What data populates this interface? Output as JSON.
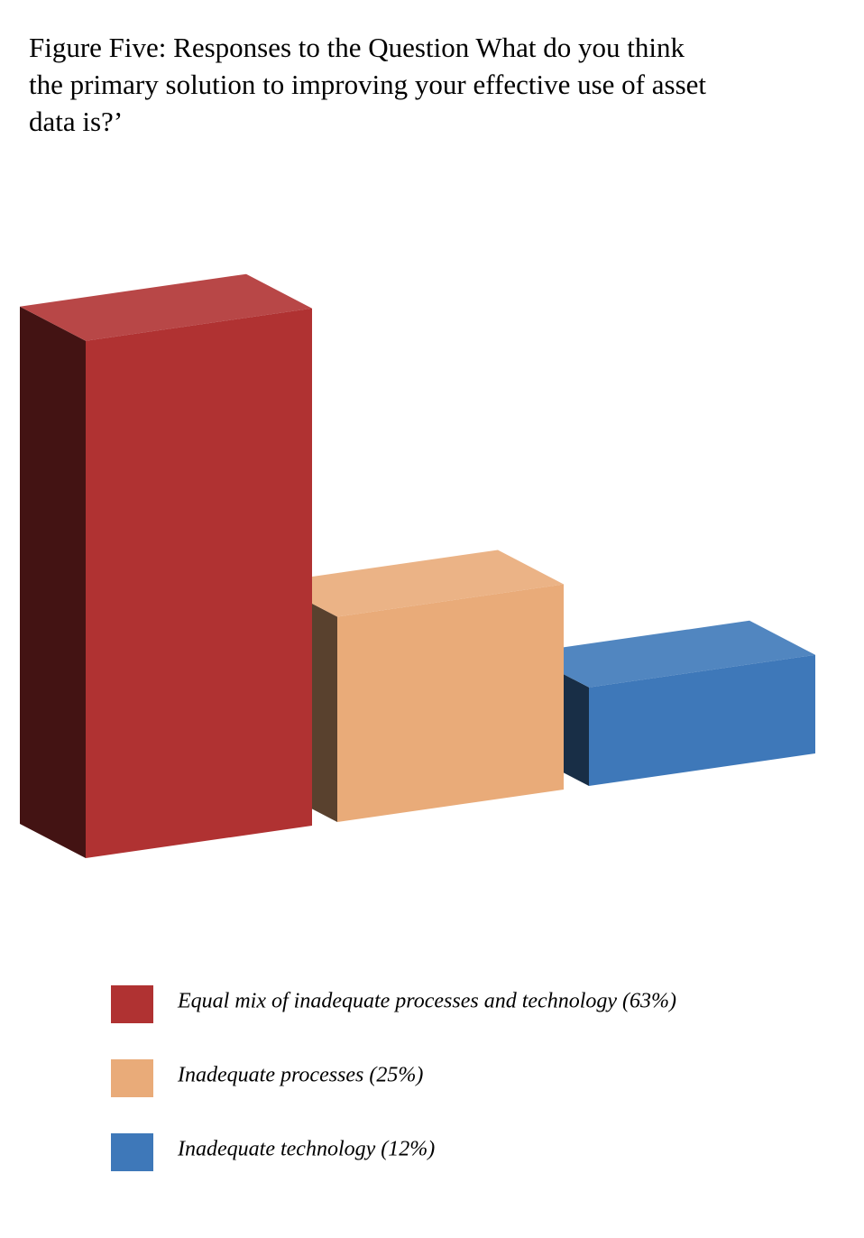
{
  "chart_data": {
    "type": "bar",
    "title": "Figure Five: Responses to the Question What do you think the primary solution to improving your effective use of asset data is?’",
    "categories": [
      "Equal mix of inadequate processes and technology (63%)",
      "Inadequate processes (25%)",
      "Inadequate technology (12%)"
    ],
    "values": [
      63,
      25,
      12
    ],
    "colors": [
      "#b03232",
      "#e9ab79",
      "#3e78b9"
    ]
  }
}
